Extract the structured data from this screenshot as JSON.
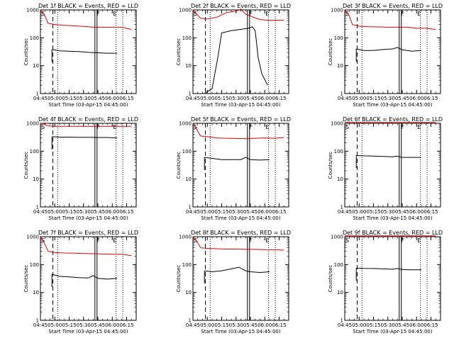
{
  "figure": {
    "series_colors": {
      "events": "#000000",
      "lld": "#e00000"
    },
    "x_tick_labels": [
      "04:45",
      "05:00",
      "05:15",
      "05:30",
      "05:45",
      "06:00",
      "06:15"
    ],
    "y_tick_labels": [
      "1",
      "10",
      "100",
      "1000"
    ],
    "event_markers": [
      "S",
      "F",
      "E"
    ]
  },
  "chart_data": [
    {
      "type": "line",
      "title": "Det 1f BLACK = Events, RED = LLD",
      "xlabel": "Start Time (03-Apr-15 04:45:00)",
      "ylabel": "Counts/sec",
      "y_scale": "log",
      "ylim": [
        1,
        1000
      ],
      "x_start_time": "04:45",
      "x_range_min": [
        0,
        100
      ],
      "series": [
        {
          "name": "Events",
          "values": [
            [
              12,
              38
            ],
            [
              20,
              34
            ],
            [
              30,
              33
            ],
            [
              40,
              32
            ],
            [
              50,
              30
            ],
            [
              60,
              29
            ],
            [
              70,
              28
            ],
            [
              80,
              28
            ]
          ]
        },
        {
          "name": "LLD",
          "values": [
            [
              0,
              1000
            ],
            [
              4,
              700
            ],
            [
              8,
              330
            ],
            [
              15,
              300
            ],
            [
              25,
              280
            ],
            [
              35,
              270
            ],
            [
              45,
              255
            ],
            [
              55,
              240
            ],
            [
              65,
              240
            ],
            [
              75,
              240
            ],
            [
              85,
              240
            ],
            [
              95,
              200
            ]
          ]
        }
      ]
    },
    {
      "type": "line",
      "title": "Det 2f BLACK = Events, RED = LLD",
      "xlabel": "Start Time (03-Apr-15 04:45:00)",
      "ylabel": "Counts/sec",
      "y_scale": "log",
      "ylim": [
        1,
        1000
      ],
      "x_start_time": "04:45",
      "x_range_min": [
        0,
        100
      ],
      "series": [
        {
          "name": "Events",
          "values": [
            [
              12,
              1
            ],
            [
              20,
              1.5
            ],
            [
              26,
              20
            ],
            [
              30,
              150
            ],
            [
              40,
              180
            ],
            [
              50,
              200
            ],
            [
              58,
              220
            ],
            [
              62,
              250
            ],
            [
              65,
              180
            ],
            [
              68,
              20
            ],
            [
              72,
              5
            ],
            [
              78,
              2
            ]
          ]
        },
        {
          "name": "LLD",
          "values": [
            [
              0,
              1000
            ],
            [
              4,
              700
            ],
            [
              8,
              500
            ],
            [
              15,
              470
            ],
            [
              25,
              550
            ],
            [
              35,
              800
            ],
            [
              45,
              900
            ],
            [
              50,
              1100
            ],
            [
              55,
              700
            ],
            [
              60,
              600
            ],
            [
              70,
              450
            ],
            [
              80,
              420
            ],
            [
              95,
              430
            ]
          ]
        }
      ]
    },
    {
      "type": "line",
      "title": "Det 3f BLACK = Events, RED = LLD",
      "xlabel": "Start Time (03-Apr-15 04:45:00)",
      "ylabel": "Counts/sec",
      "y_scale": "log",
      "ylim": [
        1,
        1000
      ],
      "x_start_time": "04:45",
      "x_range_min": [
        0,
        100
      ],
      "series": [
        {
          "name": "Events",
          "values": [
            [
              12,
              40
            ],
            [
              20,
              35
            ],
            [
              30,
              35
            ],
            [
              40,
              38
            ],
            [
              50,
              40
            ],
            [
              55,
              45
            ],
            [
              60,
              37
            ],
            [
              70,
              33
            ],
            [
              80,
              35
            ]
          ]
        },
        {
          "name": "LLD",
          "values": [
            [
              0,
              1000
            ],
            [
              4,
              700
            ],
            [
              8,
              300
            ],
            [
              15,
              260
            ],
            [
              25,
              250
            ],
            [
              35,
              245
            ],
            [
              45,
              240
            ],
            [
              55,
              240
            ],
            [
              65,
              240
            ],
            [
              75,
              220
            ],
            [
              85,
              220
            ],
            [
              95,
              200
            ]
          ]
        }
      ]
    },
    {
      "type": "line",
      "title": "Det 4f BLACK = Events, RED = LLD",
      "xlabel": "Start Time (03-Apr-15 04:45:00)",
      "ylabel": "Counts/sec",
      "y_scale": "log",
      "ylim": [
        1,
        1000
      ],
      "x_start_time": "04:45",
      "x_range_min": [
        0,
        100
      ],
      "series": [
        {
          "name": "Events",
          "values": [
            [
              12,
              330
            ],
            [
              20,
              320
            ],
            [
              30,
              320
            ],
            [
              40,
              315
            ],
            [
              50,
              315
            ],
            [
              60,
              310
            ],
            [
              70,
              310
            ],
            [
              80,
              300
            ]
          ]
        },
        {
          "name": "LLD",
          "values": [
            [
              0,
              1000
            ],
            [
              4,
              950
            ],
            [
              8,
              800
            ],
            [
              15,
              780
            ],
            [
              25,
              780
            ],
            [
              35,
              780
            ],
            [
              45,
              780
            ],
            [
              55,
              780
            ],
            [
              65,
              780
            ],
            [
              75,
              780
            ],
            [
              85,
              780
            ],
            [
              95,
              780
            ]
          ]
        }
      ]
    },
    {
      "type": "line",
      "title": "Det 5f BLACK = Events, RED = LLD",
      "xlabel": "Start Time (03-Apr-15 04:45:00)",
      "ylabel": "Counts/sec",
      "y_scale": "log",
      "ylim": [
        1,
        1000
      ],
      "x_start_time": "04:45",
      "x_range_min": [
        0,
        100
      ],
      "series": [
        {
          "name": "Events",
          "values": [
            [
              12,
              60
            ],
            [
              20,
              55
            ],
            [
              30,
              50
            ],
            [
              40,
              50
            ],
            [
              50,
              50
            ],
            [
              55,
              60
            ],
            [
              60,
              50
            ],
            [
              70,
              48
            ],
            [
              80,
              50
            ]
          ]
        },
        {
          "name": "LLD",
          "values": [
            [
              0,
              1000
            ],
            [
              4,
              600
            ],
            [
              8,
              350
            ],
            [
              15,
              330
            ],
            [
              25,
              300
            ],
            [
              35,
              290
            ],
            [
              45,
              285
            ],
            [
              55,
              280
            ],
            [
              65,
              290
            ],
            [
              75,
              300
            ],
            [
              85,
              290
            ],
            [
              95,
              310
            ]
          ]
        }
      ]
    },
    {
      "type": "line",
      "title": "Det 6f BLACK = Events, RED = LLD",
      "xlabel": "Start Time (03-Apr-15 04:45:00)",
      "ylabel": "Counts/sec",
      "y_scale": "log",
      "ylim": [
        1,
        1000
      ],
      "x_start_time": "04:45",
      "x_range_min": [
        0,
        100
      ],
      "series": [
        {
          "name": "Events",
          "values": [
            [
              12,
              70
            ],
            [
              20,
              68
            ],
            [
              30,
              67
            ],
            [
              40,
              65
            ],
            [
              50,
              63
            ],
            [
              55,
              67
            ],
            [
              60,
              60
            ],
            [
              70,
              60
            ],
            [
              80,
              60
            ]
          ]
        },
        {
          "name": "LLD",
          "values": [
            [
              0,
              1200
            ],
            [
              95,
              1200
            ]
          ]
        }
      ]
    },
    {
      "type": "line",
      "title": "Det 7f BLACK = Events, RED = LLD",
      "xlabel": "Start Time (03-Apr-15 04:45:00)",
      "ylabel": "Counts/sec",
      "y_scale": "log",
      "ylim": [
        1,
        1000
      ],
      "x_start_time": "04:45",
      "x_range_min": [
        0,
        100
      ],
      "series": [
        {
          "name": "Events",
          "values": [
            [
              12,
              45
            ],
            [
              20,
              38
            ],
            [
              30,
              36
            ],
            [
              40,
              34
            ],
            [
              50,
              33
            ],
            [
              55,
              40
            ],
            [
              60,
              32
            ],
            [
              70,
              30
            ],
            [
              80,
              32
            ]
          ]
        },
        {
          "name": "LLD",
          "values": [
            [
              0,
              1000
            ],
            [
              4,
              600
            ],
            [
              8,
              300
            ],
            [
              15,
              270
            ],
            [
              25,
              260
            ],
            [
              35,
              255
            ],
            [
              45,
              250
            ],
            [
              55,
              245
            ],
            [
              65,
              240
            ],
            [
              75,
              235
            ],
            [
              85,
              235
            ],
            [
              95,
              210
            ]
          ]
        }
      ]
    },
    {
      "type": "line",
      "title": "Det 8f BLACK = Events, RED = LLD",
      "xlabel": "Start Time (03-Apr-15 04:45:00)",
      "ylabel": "Counts/sec",
      "y_scale": "log",
      "ylim": [
        1,
        1000
      ],
      "x_start_time": "04:45",
      "x_range_min": [
        0,
        100
      ],
      "series": [
        {
          "name": "Events",
          "values": [
            [
              12,
              60
            ],
            [
              20,
              55
            ],
            [
              30,
              60
            ],
            [
              40,
              70
            ],
            [
              48,
              80
            ],
            [
              55,
              60
            ],
            [
              60,
              55
            ],
            [
              70,
              52
            ],
            [
              80,
              55
            ]
          ]
        },
        {
          "name": "LLD",
          "values": [
            [
              0,
              1000
            ],
            [
              4,
              700
            ],
            [
              8,
              400
            ],
            [
              15,
              380
            ],
            [
              25,
              370
            ],
            [
              35,
              360
            ],
            [
              45,
              360
            ],
            [
              55,
              350
            ],
            [
              65,
              350
            ],
            [
              75,
              340
            ],
            [
              85,
              340
            ],
            [
              95,
              330
            ]
          ]
        }
      ]
    },
    {
      "type": "line",
      "title": "Det 9f BLACK = Events, RED = LLD",
      "xlabel": "Start Time (03-Apr-15 04:45:00)",
      "ylabel": "Counts/sec",
      "y_scale": "log",
      "ylim": [
        1,
        1000
      ],
      "x_start_time": "04:45",
      "x_range_min": [
        0,
        100
      ],
      "series": [
        {
          "name": "Events",
          "values": [
            [
              12,
              75
            ],
            [
              20,
              73
            ],
            [
              30,
              72
            ],
            [
              40,
              70
            ],
            [
              50,
              68
            ],
            [
              55,
              72
            ],
            [
              60,
              66
            ],
            [
              70,
              65
            ],
            [
              80,
              65
            ]
          ]
        },
        {
          "name": "LLD",
          "values": [
            [
              0,
              1200
            ],
            [
              95,
              1200
            ]
          ]
        }
      ]
    }
  ]
}
